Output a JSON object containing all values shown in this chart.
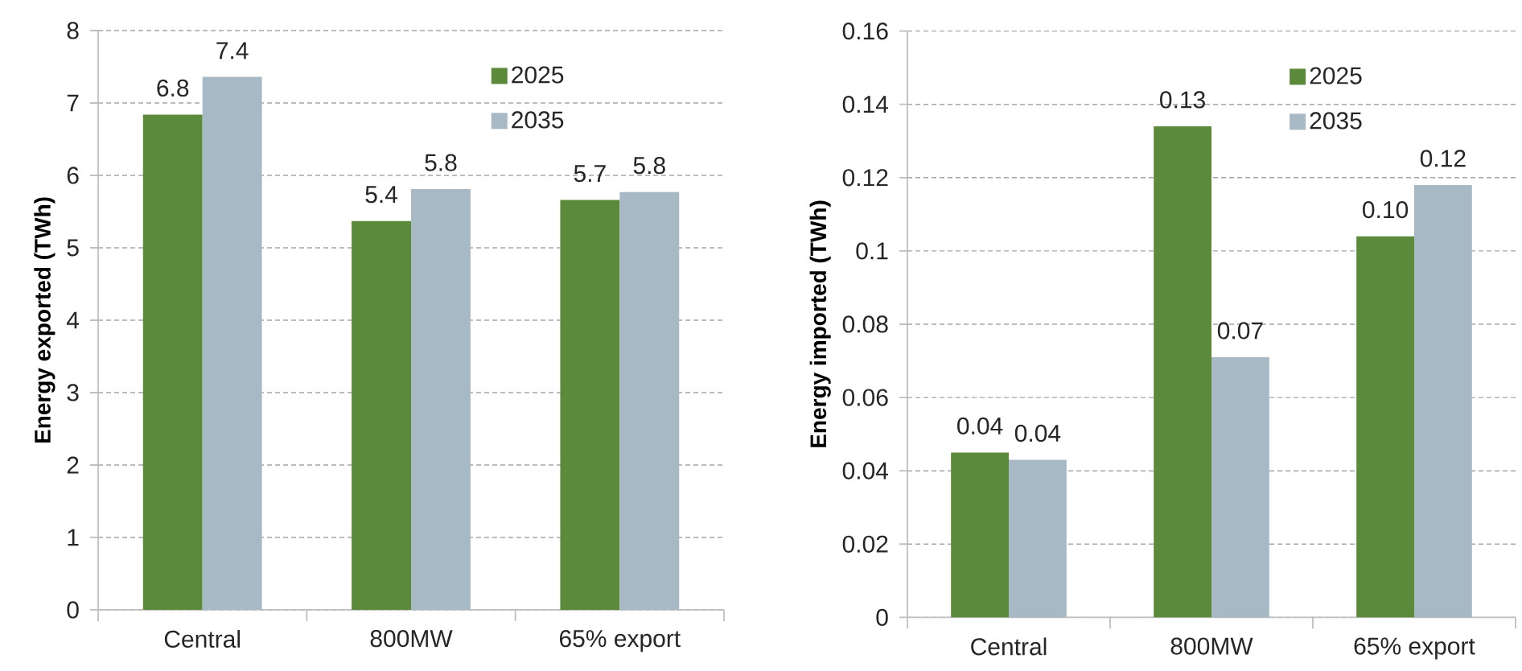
{
  "chart_data": [
    {
      "type": "bar",
      "ylabel": "Energy exported (TWh)",
      "categories": [
        "Central",
        "800MW",
        "65% export"
      ],
      "series": [
        {
          "name": "2025",
          "color": "#5b8a3a",
          "values": [
            6.84,
            5.37,
            5.66
          ],
          "value_labels": [
            "6.8",
            "5.4",
            "5.7"
          ]
        },
        {
          "name": "2035",
          "color": "#a8b9c6",
          "values": [
            7.36,
            5.81,
            5.77
          ],
          "value_labels": [
            "7.4",
            "5.8",
            "5.8"
          ]
        }
      ],
      "ylim": [
        0,
        8
      ],
      "yticks": [
        0,
        1,
        2,
        3,
        4,
        5,
        6,
        7,
        8
      ],
      "grid": "y",
      "legend": "top right"
    },
    {
      "type": "bar",
      "ylabel": "Energy imported (TWh)",
      "categories": [
        "Central",
        "800MW",
        "65% export"
      ],
      "series": [
        {
          "name": "2025",
          "color": "#5b8a3a",
          "values": [
            0.045,
            0.134,
            0.104
          ],
          "value_labels": [
            "0.04",
            "0.13",
            "0.10"
          ]
        },
        {
          "name": "2035",
          "color": "#a8b9c6",
          "values": [
            0.043,
            0.071,
            0.118
          ],
          "value_labels": [
            "0.04",
            "0.07",
            "0.12"
          ]
        }
      ],
      "ylim": [
        0,
        0.16
      ],
      "yticks": [
        0,
        0.02,
        0.04,
        0.06,
        0.08,
        0.1,
        0.12,
        0.14,
        0.16
      ],
      "grid": "y",
      "legend": "top right"
    }
  ]
}
